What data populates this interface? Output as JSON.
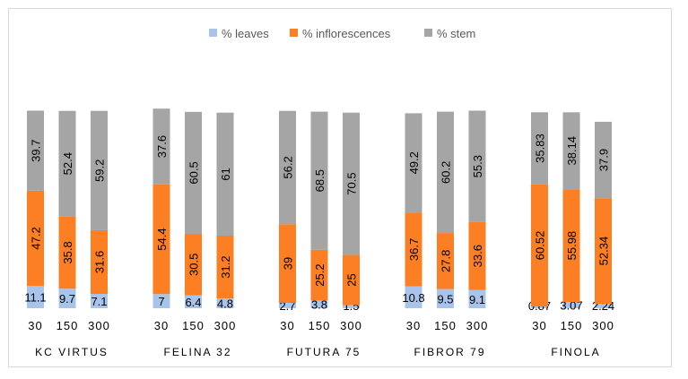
{
  "chart_data": {
    "type": "bar",
    "stacked": true,
    "ylabel": "%",
    "legend_position": "top",
    "grid": false,
    "groups": [
      "KC VIRTUS",
      "FELINA 32",
      "FUTURA 75",
      "FIBROR 79",
      "FINOLA"
    ],
    "categories": [
      "30",
      "150",
      "300"
    ],
    "series": [
      {
        "name": "% leaves",
        "color": "#a9c4eb",
        "values": [
          [
            11.1,
            9.7,
            7.1
          ],
          [
            7,
            6.4,
            4.8
          ],
          [
            2.7,
            3.8,
            1.5
          ],
          [
            10.8,
            9.5,
            9.1
          ],
          [
            0.87,
            3.07,
            2.24
          ]
        ]
      },
      {
        "name": "% inflorescences",
        "color": "#fd7f23",
        "values": [
          [
            47.2,
            35.8,
            31.6
          ],
          [
            54.4,
            30.5,
            31.2
          ],
          [
            39,
            25.2,
            25
          ],
          [
            36.7,
            27.8,
            33.6
          ],
          [
            60.52,
            55.98,
            52.34
          ]
        ]
      },
      {
        "name": "% stem",
        "color": "#a5a5a5",
        "values": [
          [
            39.7,
            52.4,
            59.2
          ],
          [
            37.6,
            60.5,
            61
          ],
          [
            56.2,
            68.5,
            70.5
          ],
          [
            49.2,
            60.2,
            55.3
          ],
          [
            35.83,
            38.14,
            37.9
          ]
        ]
      }
    ]
  }
}
